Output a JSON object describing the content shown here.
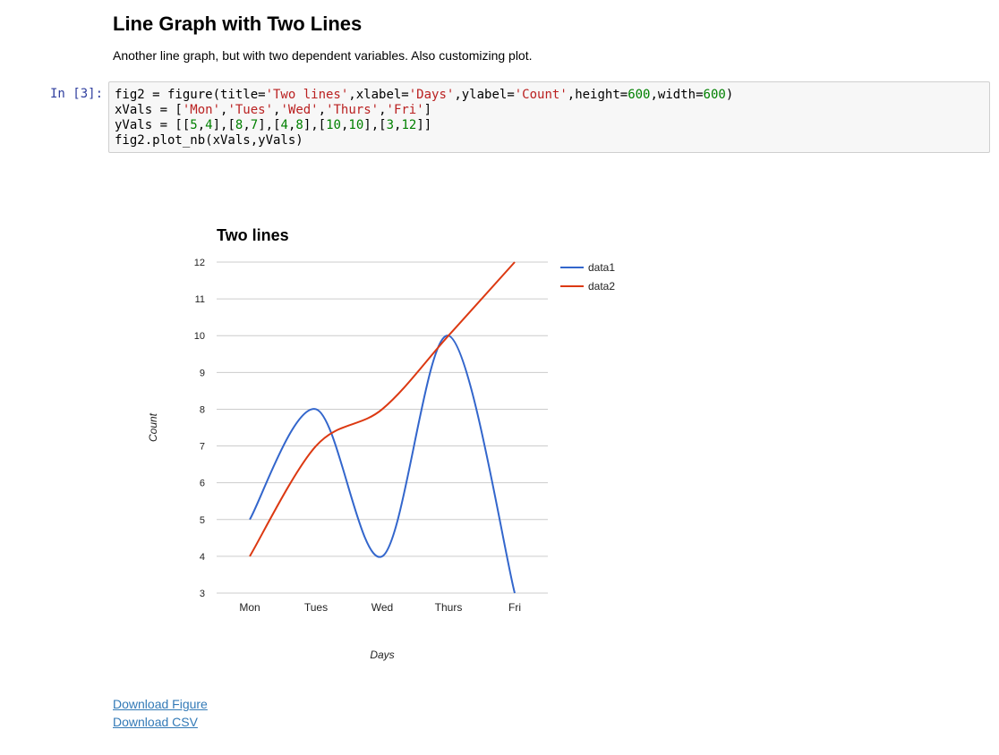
{
  "notebook": {
    "heading": "Line Graph with Two Lines",
    "description": "Another line graph, but with two dependent variables. Also customizing plot.",
    "cell": {
      "prompt": "In [3]:",
      "code_lines": [
        [
          [
            "fig2 = figure(title=",
            "plain"
          ],
          [
            "'Two lines'",
            "str"
          ],
          [
            ",xlabel=",
            "plain"
          ],
          [
            "'Days'",
            "str"
          ],
          [
            ",ylabel=",
            "plain"
          ],
          [
            "'Count'",
            "str"
          ],
          [
            ",height=",
            "plain"
          ],
          [
            "600",
            "num"
          ],
          [
            ",width=",
            "plain"
          ],
          [
            "600",
            "num"
          ],
          [
            ")",
            "plain"
          ]
        ],
        [
          [
            "xVals = [",
            "plain"
          ],
          [
            "'Mon'",
            "str"
          ],
          [
            ",",
            "plain"
          ],
          [
            "'Tues'",
            "str"
          ],
          [
            ",",
            "plain"
          ],
          [
            "'Wed'",
            "str"
          ],
          [
            ",",
            "plain"
          ],
          [
            "'Thurs'",
            "str"
          ],
          [
            ",",
            "plain"
          ],
          [
            "'Fri'",
            "str"
          ],
          [
            "]",
            "plain"
          ]
        ],
        [
          [
            "yVals = [[",
            "plain"
          ],
          [
            "5",
            "num"
          ],
          [
            ",",
            "plain"
          ],
          [
            "4",
            "num"
          ],
          [
            "],[",
            "plain"
          ],
          [
            "8",
            "num"
          ],
          [
            ",",
            "plain"
          ],
          [
            "7",
            "num"
          ],
          [
            "],[",
            "plain"
          ],
          [
            "4",
            "num"
          ],
          [
            ",",
            "plain"
          ],
          [
            "8",
            "num"
          ],
          [
            "],[",
            "plain"
          ],
          [
            "10",
            "num"
          ],
          [
            ",",
            "plain"
          ],
          [
            "10",
            "num"
          ],
          [
            "],[",
            "plain"
          ],
          [
            "3",
            "num"
          ],
          [
            ",",
            "plain"
          ],
          [
            "12",
            "num"
          ],
          [
            "]]",
            "plain"
          ]
        ],
        [
          [
            "fig2.plot_nb(xVals,yVals)",
            "plain"
          ]
        ]
      ]
    },
    "links": {
      "download_figure": "Download Figure",
      "download_csv": "Download CSV"
    }
  },
  "colors": {
    "series": [
      "#3366cc",
      "#dc3912"
    ],
    "grid": "#cccccc",
    "axis_text": "#222222"
  },
  "chart_data": {
    "type": "line",
    "title": "Two lines",
    "xlabel": "Days",
    "ylabel": "Count",
    "categories": [
      "Mon",
      "Tues",
      "Wed",
      "Thurs",
      "Fri"
    ],
    "series": [
      {
        "name": "data1",
        "values": [
          5,
          8,
          4,
          10,
          3
        ]
      },
      {
        "name": "data2",
        "values": [
          4,
          7,
          8,
          10,
          12
        ]
      }
    ],
    "ylim": [
      3,
      12
    ],
    "yticks": [
      "3",
      "4",
      "5",
      "6",
      "7",
      "8",
      "9",
      "10",
      "11",
      "12"
    ],
    "grid": true,
    "smooth": true,
    "legend": "right"
  }
}
